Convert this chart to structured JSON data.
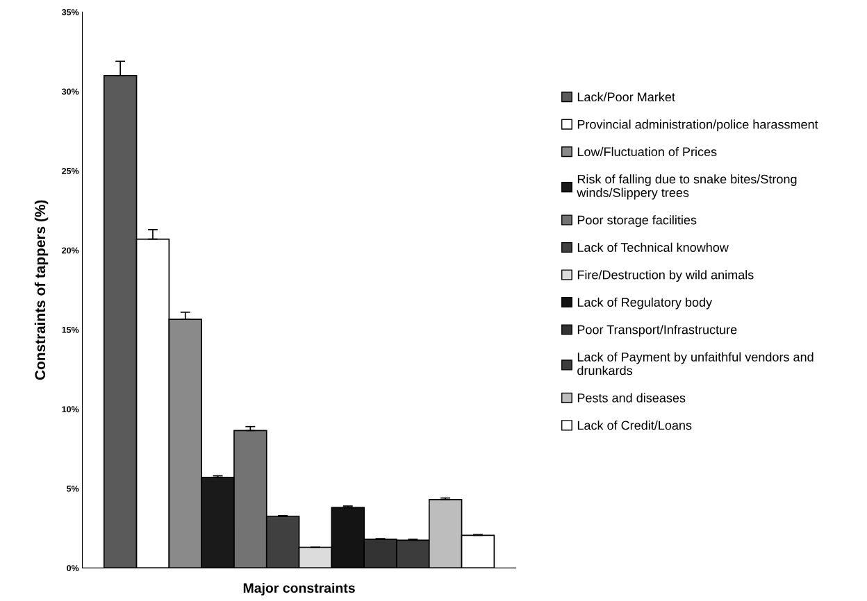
{
  "chart_data": {
    "type": "bar",
    "xlabel": "Major constraints",
    "ylabel": "Constraints of tappers (%)",
    "categories": [
      null
    ],
    "series": [
      {
        "name": "Lack/Poor Market",
        "color": "#5a5a5a",
        "values": [
          31.0
        ],
        "errors": [
          [
            31.0,
            31.9
          ]
        ]
      },
      {
        "name": "Provincial administration/police harassment",
        "color": "#ffffff",
        "values": [
          20.7
        ],
        "errors": [
          [
            20.7,
            21.3
          ]
        ]
      },
      {
        "name": "Low/Fluctuation of Prices",
        "color": "#8a8a8a",
        "values": [
          15.65
        ],
        "errors": [
          [
            15.65,
            16.1
          ]
        ]
      },
      {
        "name": "Risk of falling due to snake bites/Strong\nwinds/Slippery trees",
        "color": "#1a1a1a",
        "values": [
          5.7
        ],
        "errors": [
          [
            5.7,
            5.8
          ]
        ]
      },
      {
        "name": "Poor storage facilities",
        "color": "#737373",
        "values": [
          8.65
        ],
        "errors": [
          [
            8.65,
            8.9
          ]
        ]
      },
      {
        "name": "Lack of Technical knowhow",
        "color": "#404040",
        "values": [
          3.25
        ],
        "errors": [
          [
            3.25,
            3.3
          ]
        ]
      },
      {
        "name": "Fire/Destruction by wild animals",
        "color": "#dcdcdc",
        "values": [
          1.3
        ],
        "errors": [
          null
        ]
      },
      {
        "name": "Lack of Regulatory body",
        "color": "#141414",
        "values": [
          3.8
        ],
        "errors": [
          [
            3.8,
            3.9
          ]
        ]
      },
      {
        "name": "Poor Transport/Infrastructure",
        "color": "#333333",
        "values": [
          1.8
        ],
        "errors": [
          [
            1.8,
            1.85
          ]
        ]
      },
      {
        "name": "Lack of Payment by unfaithful vendors and\ndrunkards",
        "color": "#3c3c3c",
        "values": [
          1.75
        ],
        "errors": [
          [
            1.75,
            1.8
          ]
        ]
      },
      {
        "name": "Pests and diseases",
        "color": "#bdbdbd",
        "values": [
          4.3
        ],
        "errors": [
          [
            4.3,
            4.4
          ]
        ]
      },
      {
        "name": "Lack of Credit/Loans",
        "color": "#ffffff",
        "values": [
          2.05
        ],
        "errors": [
          [
            2.05,
            2.1
          ]
        ]
      }
    ],
    "ylim": [
      0,
      35
    ],
    "yticks": [
      {
        "value": 0,
        "label": "0%"
      },
      {
        "value": 5,
        "label": "5%"
      },
      {
        "value": 10,
        "label": "10%"
      },
      {
        "value": 15,
        "label": "15%"
      },
      {
        "value": 20,
        "label": "20%"
      },
      {
        "value": 25,
        "label": "25%"
      },
      {
        "value": 30,
        "label": "30%"
      },
      {
        "value": 35,
        "label": "35%"
      }
    ],
    "grid": false,
    "legend": "right"
  }
}
